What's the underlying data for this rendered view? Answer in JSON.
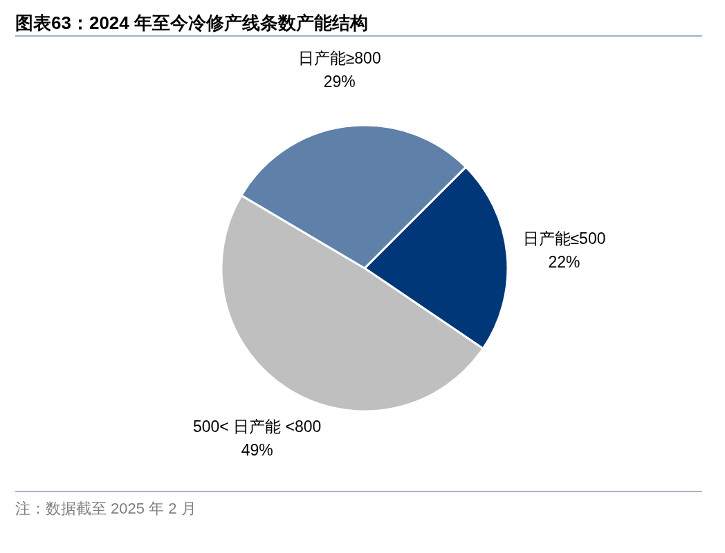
{
  "chart_data": {
    "type": "pie",
    "title": "图表63：2024 年至今冷修产线条数产能结构",
    "categories": [
      "日产能≤500",
      "500< 日产能 <800",
      "日产能≥800"
    ],
    "values": [
      22,
      49,
      29
    ],
    "colors": [
      "#003778",
      "#bfbfbf",
      "#5e80a9"
    ],
    "value_labels": [
      "22%",
      "49%",
      "29%"
    ],
    "annotations": [
      "注：数据截至 2025 年 2 月"
    ]
  }
}
